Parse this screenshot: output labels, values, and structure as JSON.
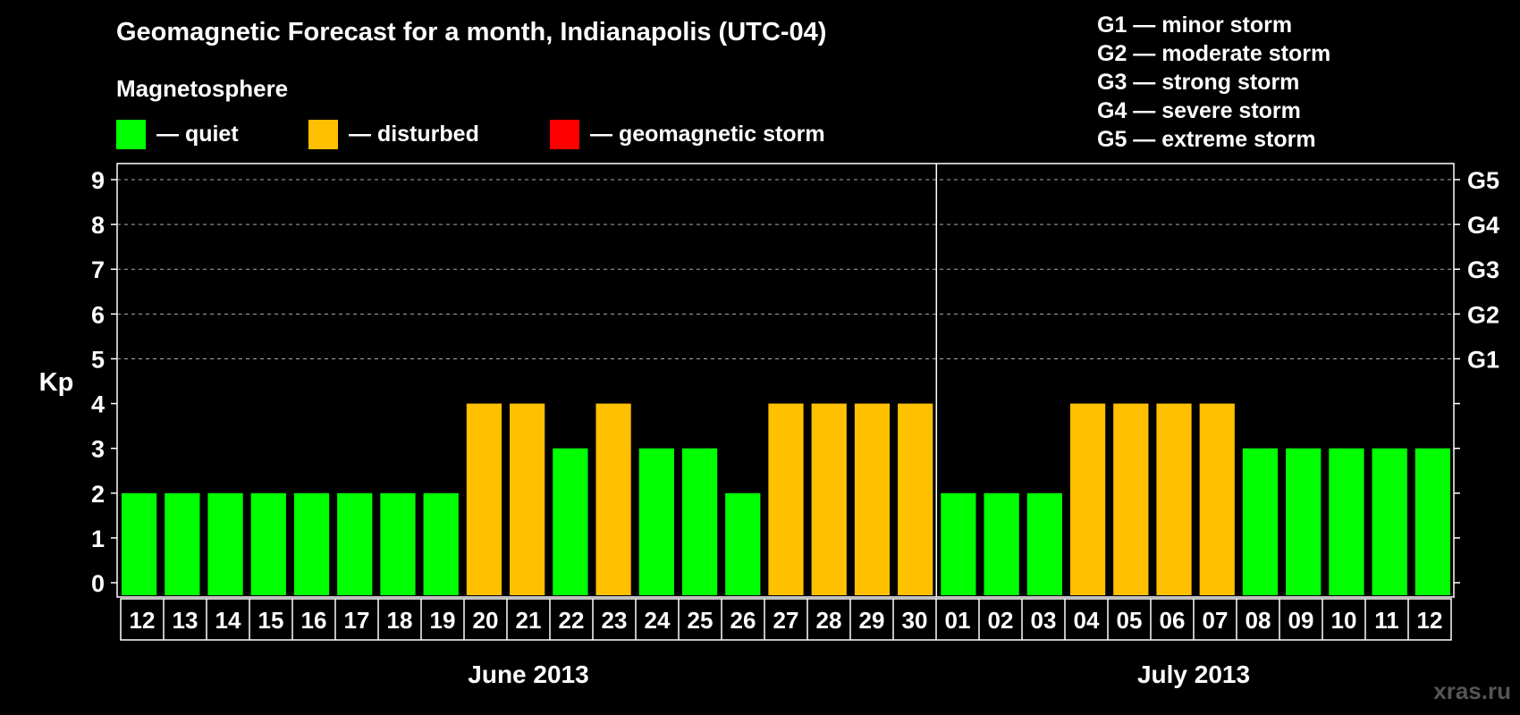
{
  "header": {
    "title": "Geomagnetic Forecast for a month, Indianapolis (UTC-04)",
    "subtitle": "Magnetosphere"
  },
  "legend": [
    {
      "label": "— quiet",
      "color": "#00ff00"
    },
    {
      "label": "— disturbed",
      "color": "#ffc000"
    },
    {
      "label": "— geomagnetic storm",
      "color": "#ff0000"
    }
  ],
  "g_scale": [
    "G1 — minor storm",
    "G2 — moderate storm",
    "G3 — strong storm",
    "G4 — severe storm",
    "G5 — extreme storm"
  ],
  "watermark": "xras.ru",
  "chart_data": {
    "type": "bar",
    "title": "Geomagnetic Forecast for a month, Indianapolis (UTC-04)",
    "ylabel": "Kp",
    "ylim": [
      0,
      9
    ],
    "yticks": [
      "0",
      "1",
      "2",
      "3",
      "4",
      "5",
      "6",
      "7",
      "8",
      "9"
    ],
    "right_labels": [
      {
        "kp": 5,
        "label": "G1"
      },
      {
        "kp": 6,
        "label": "G2"
      },
      {
        "kp": 7,
        "label": "G3"
      },
      {
        "kp": 8,
        "label": "G4"
      },
      {
        "kp": 9,
        "label": "G5"
      }
    ],
    "categories": [
      "12",
      "13",
      "14",
      "15",
      "16",
      "17",
      "18",
      "19",
      "20",
      "21",
      "22",
      "23",
      "24",
      "25",
      "26",
      "27",
      "28",
      "29",
      "30",
      "01",
      "02",
      "03",
      "04",
      "05",
      "06",
      "07",
      "08",
      "09",
      "10",
      "11",
      "12"
    ],
    "values": [
      2,
      2,
      2,
      2,
      2,
      2,
      2,
      2,
      4,
      4,
      3,
      4,
      3,
      3,
      2,
      4,
      4,
      4,
      4,
      2,
      2,
      2,
      4,
      4,
      4,
      4,
      3,
      3,
      3,
      3,
      3
    ],
    "months": [
      {
        "label": "June 2013",
        "start": 0,
        "count": 19
      },
      {
        "label": "July 2013",
        "start": 19,
        "count": 12
      }
    ],
    "colors": {
      "quiet": "#00ff00",
      "disturbed": "#ffc000",
      "storm": "#ff0000"
    }
  }
}
